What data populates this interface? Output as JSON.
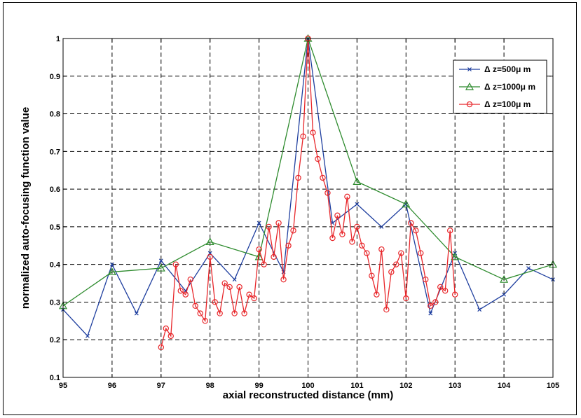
{
  "chart_data": {
    "type": "line",
    "xlabel": "axial reconstructed distance (mm)",
    "ylabel": "normalized auto-focusing function value",
    "xlim": [
      95,
      105
    ],
    "ylim": [
      0.1,
      1
    ],
    "x_ticks": [
      95,
      96,
      97,
      98,
      99,
      100,
      101,
      102,
      103,
      104,
      105
    ],
    "y_ticks": [
      0.1,
      0.2,
      0.3,
      0.4,
      0.5,
      0.6,
      0.7,
      0.8,
      0.9,
      1
    ],
    "x_tick_labels": [
      "95",
      "96",
      "97",
      "98",
      "99",
      "100",
      "101",
      "102",
      "103",
      "104",
      "105"
    ],
    "y_tick_labels": [
      "0.1",
      "0.2",
      "0.3",
      "0.4",
      "0.5",
      "0.6",
      "0.7",
      "0.8",
      "0.9",
      "1"
    ],
    "grid": true,
    "legend_position": "top-right",
    "series": [
      {
        "name": "Δ z=500μ m",
        "color": "#1f3f9f",
        "marker": "x",
        "x": [
          95,
          95.5,
          96,
          96.5,
          97,
          97.5,
          98,
          98.5,
          99,
          99.5,
          100,
          100.5,
          101,
          101.5,
          102,
          102.5,
          103,
          103.5,
          104,
          104.5,
          105
        ],
        "y": [
          0.28,
          0.21,
          0.4,
          0.27,
          0.41,
          0.33,
          0.43,
          0.36,
          0.51,
          0.38,
          1.0,
          0.51,
          0.56,
          0.5,
          0.56,
          0.27,
          0.43,
          0.28,
          0.32,
          0.39,
          0.36
        ]
      },
      {
        "name": "Δ z=1000μ m",
        "color": "#2e8b2e",
        "marker": "triangle",
        "x": [
          95,
          96,
          97,
          98,
          99,
          100,
          101,
          102,
          103,
          104,
          105
        ],
        "y": [
          0.29,
          0.38,
          0.39,
          0.46,
          0.42,
          1.0,
          0.62,
          0.56,
          0.42,
          0.36,
          0.4
        ]
      },
      {
        "name": "Δ z=100μ m",
        "color": "#e8262a",
        "marker": "circle",
        "x": [
          97.0,
          97.1,
          97.2,
          97.3,
          97.4,
          97.5,
          97.6,
          97.7,
          97.8,
          97.9,
          98.0,
          98.1,
          98.2,
          98.3,
          98.4,
          98.5,
          98.6,
          98.7,
          98.8,
          98.9,
          99.0,
          99.1,
          99.2,
          99.3,
          99.4,
          99.5,
          99.6,
          99.7,
          99.8,
          99.9,
          100.0,
          100.1,
          100.2,
          100.3,
          100.4,
          100.5,
          100.6,
          100.7,
          100.8,
          100.9,
          101.0,
          101.1,
          101.2,
          101.3,
          101.4,
          101.5,
          101.6,
          101.7,
          101.8,
          101.9,
          102.0,
          102.1,
          102.2,
          102.3,
          102.4,
          102.5,
          102.6,
          102.7,
          102.8,
          102.9,
          103.0
        ],
        "y": [
          0.18,
          0.23,
          0.21,
          0.4,
          0.33,
          0.32,
          0.36,
          0.29,
          0.27,
          0.25,
          0.42,
          0.3,
          0.27,
          0.35,
          0.34,
          0.27,
          0.34,
          0.27,
          0.32,
          0.31,
          0.44,
          0.4,
          0.5,
          0.42,
          0.51,
          0.36,
          0.45,
          0.49,
          0.63,
          0.74,
          1.0,
          0.75,
          0.68,
          0.63,
          0.59,
          0.47,
          0.53,
          0.48,
          0.58,
          0.46,
          0.5,
          0.45,
          0.43,
          0.37,
          0.32,
          0.44,
          0.28,
          0.38,
          0.4,
          0.43,
          0.31,
          0.51,
          0.49,
          0.43,
          0.36,
          0.29,
          0.3,
          0.34,
          0.33,
          0.49,
          0.32
        ]
      }
    ]
  }
}
